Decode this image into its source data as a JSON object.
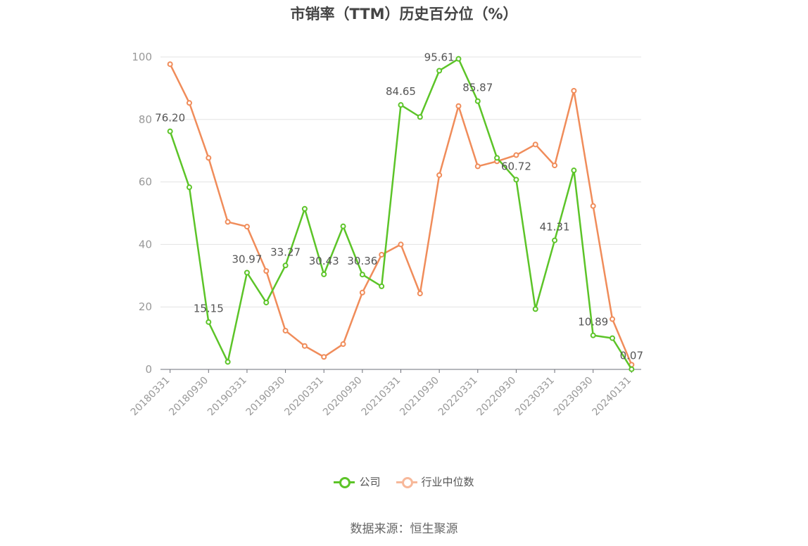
{
  "title": "市销率（TTM）历史百分位（%）",
  "source_note": "数据来源：恒生聚源",
  "legend": {
    "company_label": "公司",
    "industry_label": "行业中位数"
  },
  "colors": {
    "company": "#5cc428",
    "industry": "#f08c5a",
    "industry_legend": "#f7b89a",
    "grid": "#e3e3e3",
    "axis": "#6e7079",
    "tick_text": "#999999",
    "label_text": "#555555"
  },
  "chart_data": {
    "type": "line",
    "title": "市销率（TTM）历史百分位（%）",
    "xlabel": "",
    "ylabel": "",
    "ylim": [
      0,
      100
    ],
    "yticks": [
      0,
      20,
      40,
      60,
      80,
      100
    ],
    "grid": true,
    "legend_position": "bottom",
    "categories": [
      "20180331",
      "20180630",
      "20180930",
      "20181231",
      "20190331",
      "20190630",
      "20190930",
      "20191231",
      "20200331",
      "20200630",
      "20200930",
      "20201231",
      "20210331",
      "20210630",
      "20210930",
      "20211231",
      "20220331",
      "20220630",
      "20220930",
      "20221231",
      "20230331",
      "20230630",
      "20230930",
      "20231231",
      "20240131"
    ],
    "x_tick_labels": [
      "20180331",
      "20180930",
      "20190331",
      "20190930",
      "20200331",
      "20200930",
      "20210331",
      "20210930",
      "20220331",
      "20220930",
      "20230331",
      "20230930",
      "20240131"
    ],
    "series": [
      {
        "name": "公司",
        "values": [
          76.2,
          58.3,
          15.15,
          2.4,
          30.97,
          21.4,
          33.27,
          51.4,
          30.43,
          45.8,
          30.36,
          26.6,
          84.65,
          80.8,
          95.61,
          99.4,
          85.87,
          67.7,
          60.72,
          19.3,
          41.31,
          63.7,
          10.89,
          10.0,
          0.07
        ],
        "point_labels": [
          "76.20",
          "",
          "15.15",
          "",
          "30.97",
          "",
          "33.27",
          "",
          "30.43",
          "",
          "30.36",
          "",
          "84.65",
          "",
          "95.61",
          "",
          "85.87",
          "",
          "60.72",
          "",
          "41.31",
          "",
          "10.89",
          "",
          "0.07"
        ]
      },
      {
        "name": "行业中位数",
        "values": [
          97.7,
          85.3,
          67.7,
          47.2,
          45.7,
          31.5,
          12.4,
          7.5,
          4.0,
          8.1,
          24.6,
          36.7,
          40.0,
          24.3,
          62.2,
          84.3,
          65.0,
          66.6,
          68.6,
          72.0,
          65.3,
          89.2,
          52.3,
          16.1,
          1.5
        ]
      }
    ]
  }
}
